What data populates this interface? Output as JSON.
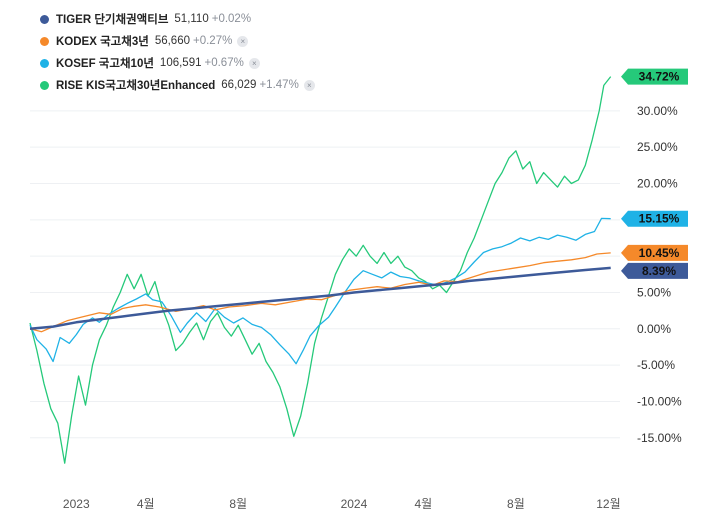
{
  "legend": [
    {
      "name": "TIGER 단기채권액티브",
      "price": "51,110",
      "change": "+0.02%",
      "color": "#3d5a99",
      "closable": false
    },
    {
      "name": "KODEX 국고채3년",
      "price": "56,660",
      "change": "+0.27%",
      "color": "#f5892a",
      "closable": true
    },
    {
      "name": "KOSEF 국고채10년",
      "price": "106,591",
      "change": "+0.67%",
      "color": "#1fb2e6",
      "closable": true
    },
    {
      "name": "RISE KIS국고채30년Enhanced",
      "price": "66,029",
      "change": "+1.47%",
      "color": "#25c97a",
      "closable": true
    }
  ],
  "close_icon_glyph": "×",
  "chart_data": {
    "type": "line",
    "x_unit": "month index from 2022-11 (0 = Nov 2022)",
    "x_range": [
      0,
      25.5
    ],
    "ylim": [
      -21.5,
      37
    ],
    "y_ticks": [
      30,
      25,
      20,
      15,
      10,
      5,
      0,
      -5,
      -10,
      -15
    ],
    "y_tick_labels": [
      "30.00%",
      "25.00%",
      "20.00%",
      "15.00%",
      "10.00%",
      "5.00%",
      "0.00%",
      "-5.00%",
      "-10.00%",
      "-15.00%"
    ],
    "x_ticks": [
      {
        "x": 2,
        "label": "2023"
      },
      {
        "x": 5,
        "label": "4월"
      },
      {
        "x": 9,
        "label": "8월"
      },
      {
        "x": 14,
        "label": "2024"
      },
      {
        "x": 17,
        "label": "4월"
      },
      {
        "x": 21,
        "label": "8월"
      },
      {
        "x": 25,
        "label": "12월"
      }
    ],
    "grid": true,
    "series": [
      {
        "name": "TIGER 단기채권액티브",
        "color": "#3d5a99",
        "end_label": "8.39%",
        "points": [
          [
            0,
            0
          ],
          [
            1,
            0.3
          ],
          [
            2,
            0.9
          ],
          [
            3,
            1.3
          ],
          [
            4,
            1.7
          ],
          [
            5,
            2.1
          ],
          [
            6,
            2.5
          ],
          [
            7,
            2.8
          ],
          [
            8,
            3.1
          ],
          [
            9,
            3.4
          ],
          [
            10,
            3.7
          ],
          [
            11,
            4.0
          ],
          [
            12,
            4.3
          ],
          [
            13,
            4.6
          ],
          [
            14,
            5.0
          ],
          [
            15,
            5.3
          ],
          [
            16,
            5.6
          ],
          [
            17,
            5.9
          ],
          [
            18,
            6.2
          ],
          [
            19,
            6.6
          ],
          [
            20,
            6.9
          ],
          [
            21,
            7.2
          ],
          [
            22,
            7.5
          ],
          [
            23,
            7.8
          ],
          [
            24,
            8.1
          ],
          [
            25.1,
            8.39
          ]
        ]
      },
      {
        "name": "KODEX 국고채3년",
        "color": "#f5892a",
        "end_label": "10.45%",
        "points": [
          [
            0,
            0
          ],
          [
            0.5,
            -0.4
          ],
          [
            1,
            0.3
          ],
          [
            1.6,
            1.1
          ],
          [
            2.2,
            1.6
          ],
          [
            3,
            2.2
          ],
          [
            3.5,
            2.0
          ],
          [
            4,
            2.8
          ],
          [
            4.5,
            3.1
          ],
          [
            5,
            3.3
          ],
          [
            5.6,
            3.0
          ],
          [
            6.3,
            2.4
          ],
          [
            6.8,
            2.7
          ],
          [
            7.5,
            3.2
          ],
          [
            8,
            2.6
          ],
          [
            8.6,
            3.0
          ],
          [
            9.3,
            3.2
          ],
          [
            10,
            3.5
          ],
          [
            10.6,
            3.3
          ],
          [
            11.3,
            3.7
          ],
          [
            12,
            4.1
          ],
          [
            12.6,
            4.0
          ],
          [
            13.2,
            4.6
          ],
          [
            13.8,
            5.3
          ],
          [
            14.5,
            5.6
          ],
          [
            15,
            5.8
          ],
          [
            15.6,
            5.6
          ],
          [
            16.2,
            6.1
          ],
          [
            16.8,
            6.4
          ],
          [
            17.4,
            6.0
          ],
          [
            17.9,
            6.6
          ],
          [
            18.5,
            6.5
          ],
          [
            19.2,
            7.2
          ],
          [
            19.8,
            7.8
          ],
          [
            20.4,
            8.1
          ],
          [
            21,
            8.4
          ],
          [
            21.6,
            8.7
          ],
          [
            22.2,
            9.1
          ],
          [
            22.8,
            9.3
          ],
          [
            23.4,
            9.5
          ],
          [
            24,
            9.8
          ],
          [
            24.5,
            10.3
          ],
          [
            25.1,
            10.45
          ]
        ]
      },
      {
        "name": "KOSEF 국고채10년",
        "color": "#1fb2e6",
        "end_label": "15.15%",
        "points": [
          [
            0,
            0.5
          ],
          [
            0.3,
            -1.5
          ],
          [
            0.7,
            -2.8
          ],
          [
            1,
            -4.5
          ],
          [
            1.3,
            -1.2
          ],
          [
            1.7,
            -2.0
          ],
          [
            2,
            -0.8
          ],
          [
            2.3,
            0.6
          ],
          [
            2.7,
            1.5
          ],
          [
            3,
            0.9
          ],
          [
            3.4,
            2.0
          ],
          [
            3.8,
            2.8
          ],
          [
            4.2,
            3.5
          ],
          [
            4.6,
            4.1
          ],
          [
            5,
            4.8
          ],
          [
            5.3,
            4.0
          ],
          [
            5.7,
            3.7
          ],
          [
            6.1,
            1.8
          ],
          [
            6.5,
            -0.5
          ],
          [
            6.8,
            0.8
          ],
          [
            7.2,
            2.2
          ],
          [
            7.6,
            1.0
          ],
          [
            8,
            2.8
          ],
          [
            8.4,
            1.6
          ],
          [
            8.8,
            0.8
          ],
          [
            9.2,
            1.5
          ],
          [
            9.6,
            0.6
          ],
          [
            10,
            0.2
          ],
          [
            10.4,
            -0.8
          ],
          [
            10.8,
            -2.2
          ],
          [
            11.2,
            -3.5
          ],
          [
            11.5,
            -4.8
          ],
          [
            11.8,
            -3.0
          ],
          [
            12.1,
            -1.0
          ],
          [
            12.5,
            0.5
          ],
          [
            12.9,
            1.6
          ],
          [
            13.2,
            3.0
          ],
          [
            13.6,
            5.0
          ],
          [
            14,
            6.8
          ],
          [
            14.4,
            8.0
          ],
          [
            14.8,
            7.5
          ],
          [
            15.2,
            7.0
          ],
          [
            15.6,
            7.8
          ],
          [
            16,
            7.2
          ],
          [
            16.4,
            7.0
          ],
          [
            16.8,
            6.6
          ],
          [
            17.2,
            6.3
          ],
          [
            17.6,
            6.0
          ],
          [
            18,
            6.4
          ],
          [
            18.4,
            7.0
          ],
          [
            18.8,
            7.8
          ],
          [
            19.2,
            9.2
          ],
          [
            19.6,
            10.5
          ],
          [
            20,
            11.0
          ],
          [
            20.4,
            11.3
          ],
          [
            20.8,
            11.8
          ],
          [
            21.2,
            12.5
          ],
          [
            21.6,
            12.1
          ],
          [
            22,
            12.6
          ],
          [
            22.4,
            12.3
          ],
          [
            22.8,
            12.9
          ],
          [
            23.2,
            12.6
          ],
          [
            23.6,
            12.2
          ],
          [
            24,
            13.0
          ],
          [
            24.4,
            13.4
          ],
          [
            24.7,
            15.2
          ],
          [
            25.1,
            15.15
          ]
        ]
      },
      {
        "name": "RISE KIS국고채30년Enhanced",
        "color": "#25c97a",
        "end_label": "34.72%",
        "points": [
          [
            0,
            0.8
          ],
          [
            0.3,
            -3.0
          ],
          [
            0.6,
            -7.5
          ],
          [
            0.9,
            -11.0
          ],
          [
            1.2,
            -13.0
          ],
          [
            1.5,
            -18.5
          ],
          [
            1.8,
            -12.0
          ],
          [
            2.1,
            -6.5
          ],
          [
            2.4,
            -10.5
          ],
          [
            2.7,
            -5.0
          ],
          [
            3,
            -1.5
          ],
          [
            3.3,
            0.5
          ],
          [
            3.6,
            3.0
          ],
          [
            3.9,
            5.0
          ],
          [
            4.2,
            7.5
          ],
          [
            4.5,
            5.5
          ],
          [
            4.8,
            7.5
          ],
          [
            5.1,
            4.5
          ],
          [
            5.4,
            6.5
          ],
          [
            5.7,
            3.0
          ],
          [
            6,
            0.5
          ],
          [
            6.3,
            -3.0
          ],
          [
            6.6,
            -2.0
          ],
          [
            6.9,
            -0.5
          ],
          [
            7.2,
            0.8
          ],
          [
            7.5,
            -1.5
          ],
          [
            7.8,
            1.0
          ],
          [
            8.1,
            2.2
          ],
          [
            8.4,
            0.2
          ],
          [
            8.7,
            -1.0
          ],
          [
            9,
            0.5
          ],
          [
            9.3,
            -1.5
          ],
          [
            9.6,
            -3.5
          ],
          [
            9.9,
            -2.0
          ],
          [
            10.2,
            -4.5
          ],
          [
            10.5,
            -6.0
          ],
          [
            10.8,
            -8.0
          ],
          [
            11.1,
            -11.0
          ],
          [
            11.4,
            -14.8
          ],
          [
            11.7,
            -12.0
          ],
          [
            12,
            -7.5
          ],
          [
            12.3,
            -2.0
          ],
          [
            12.6,
            1.5
          ],
          [
            12.9,
            4.5
          ],
          [
            13.2,
            7.5
          ],
          [
            13.5,
            9.5
          ],
          [
            13.8,
            11.0
          ],
          [
            14.1,
            10.0
          ],
          [
            14.4,
            11.5
          ],
          [
            14.7,
            10.0
          ],
          [
            15,
            9.0
          ],
          [
            15.3,
            10.5
          ],
          [
            15.6,
            9.0
          ],
          [
            15.9,
            10.0
          ],
          [
            16.2,
            8.5
          ],
          [
            16.5,
            8.0
          ],
          [
            16.8,
            7.0
          ],
          [
            17.1,
            6.5
          ],
          [
            17.4,
            5.5
          ],
          [
            17.7,
            6.0
          ],
          [
            18,
            5.0
          ],
          [
            18.3,
            6.5
          ],
          [
            18.6,
            8.0
          ],
          [
            18.9,
            10.5
          ],
          [
            19.2,
            12.5
          ],
          [
            19.5,
            15.0
          ],
          [
            19.8,
            17.5
          ],
          [
            20.1,
            20.0
          ],
          [
            20.4,
            21.5
          ],
          [
            20.7,
            23.5
          ],
          [
            21,
            24.5
          ],
          [
            21.3,
            22.0
          ],
          [
            21.6,
            23.0
          ],
          [
            21.9,
            20.0
          ],
          [
            22.2,
            21.5
          ],
          [
            22.5,
            20.5
          ],
          [
            22.8,
            19.5
          ],
          [
            23.1,
            21.0
          ],
          [
            23.4,
            20.0
          ],
          [
            23.7,
            20.5
          ],
          [
            24,
            22.5
          ],
          [
            24.3,
            26.0
          ],
          [
            24.6,
            30.0
          ],
          [
            24.8,
            33.5
          ],
          [
            25.1,
            34.72
          ]
        ]
      }
    ]
  }
}
